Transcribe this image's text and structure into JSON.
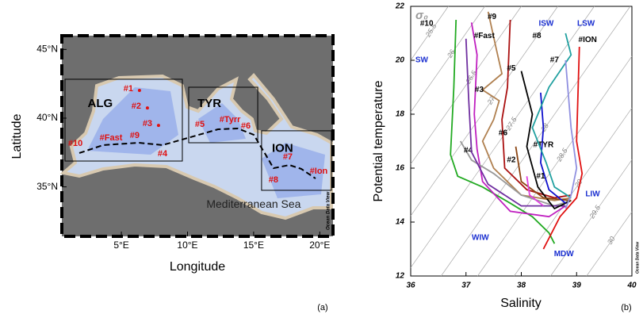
{
  "chart_data": [
    {
      "type": "map",
      "x_label": "Longitude",
      "y_label": "Latitude",
      "xlim": [
        0.5,
        21
      ],
      "ylim": [
        31.4,
        46
      ],
      "xticks": [
        {
          "value": 5,
          "label": "5°E"
        },
        {
          "value": 10,
          "label": "10°E"
        },
        {
          "value": 15,
          "label": "15°E"
        },
        {
          "value": 20,
          "label": "20°E"
        }
      ],
      "yticks": [
        {
          "value": 35,
          "label": "35°N"
        },
        {
          "value": 40,
          "label": "40°N"
        },
        {
          "value": 45,
          "label": "45°N"
        }
      ],
      "regions": [
        {
          "name": "ALG",
          "lon": [
            0.74,
            9.61
          ],
          "lat": [
            36.88,
            42.83
          ]
        },
        {
          "name": "TYR",
          "lon": [
            10.09,
            15.31
          ],
          "lat": [
            38.21,
            42.25
          ]
        },
        {
          "name": "ION",
          "lon": [
            15.6,
            20.88
          ],
          "lat": [
            34.75,
            39.08
          ]
        }
      ],
      "track": {
        "lon": [
          1.82,
          3.62,
          6.31,
          8.11,
          10.21,
          12.31,
          13.81,
          15.01,
          15.91,
          16.5,
          17.7,
          18.6,
          19.68
        ],
        "lat": [
          37.46,
          38.04,
          38.21,
          38.04,
          38.61,
          39.19,
          39.25,
          38.79,
          37.34,
          36.36,
          36.59,
          36.31,
          35.61
        ]
      },
      "stations": [
        {
          "name": "#1",
          "lon": 5.53,
          "lat": 42.13,
          "marker": true
        },
        {
          "name": "#2",
          "lon": 6.13,
          "lat": 40.86,
          "marker": true
        },
        {
          "name": "#3",
          "lon": 6.97,
          "lat": 39.59,
          "marker": true
        },
        {
          "name": "#9",
          "lon": 6.01,
          "lat": 38.73
        },
        {
          "name": "#Fast",
          "lon": 4.22,
          "lat": 38.56
        },
        {
          "name": "#10",
          "lon": 1.52,
          "lat": 38.15
        },
        {
          "name": "#4",
          "lon": 8.11,
          "lat": 37.4
        },
        {
          "name": "#5",
          "lon": 10.93,
          "lat": 39.54
        },
        {
          "name": "#Tyrr",
          "lon": 13.21,
          "lat": 39.88
        },
        {
          "name": "#6",
          "lon": 14.41,
          "lat": 39.42
        },
        {
          "name": "#7",
          "lon": 17.58,
          "lat": 37.17
        },
        {
          "name": "#8",
          "lon": 16.5,
          "lat": 35.5
        },
        {
          "name": "#Ion",
          "lon": 19.92,
          "lat": 36.13
        }
      ],
      "annotation": {
        "text": "Mediterranean Sea",
        "lon": 15.0,
        "lat": 33.7
      },
      "credit": "Ocean Data View",
      "panel_label": "(a)"
    },
    {
      "type": "line",
      "x_label": "Salinity",
      "y_label": "Potential temperature",
      "xlim": [
        36,
        40
      ],
      "ylim": [
        12,
        22
      ],
      "xticks": [
        36,
        37,
        38,
        39,
        40
      ],
      "yticks": [
        12,
        14,
        16,
        18,
        20,
        22
      ],
      "sigma_label": "σ₀",
      "credit": "Ocean Data View",
      "panel_label": "(b)",
      "isopycnals": [
        {
          "value": 25.5,
          "x": [
            36,
            36.68
          ],
          "y": [
            20,
            22
          ]
        },
        {
          "value": 26,
          "x": [
            36,
            37.34
          ],
          "y": [
            18.08,
            22
          ]
        },
        {
          "value": 26.5,
          "x": [
            36,
            38.0
          ],
          "y": [
            16.15,
            22
          ]
        },
        {
          "value": 27,
          "x": [
            36,
            38.66
          ],
          "y": [
            14.23,
            22
          ]
        },
        {
          "value": 27.5,
          "x": [
            36,
            39.32
          ],
          "y": [
            12.31,
            22
          ]
        },
        {
          "value": 28,
          "x": [
            36.55,
            39.97
          ],
          "y": [
            12,
            22
          ]
        },
        {
          "value": 28.5,
          "x": [
            37.21,
            40
          ],
          "y": [
            12,
            20.15
          ]
        },
        {
          "value": 29,
          "x": [
            37.87,
            40
          ],
          "y": [
            12,
            18.23
          ]
        },
        {
          "value": 29.5,
          "x": [
            38.53,
            40
          ],
          "y": [
            12,
            16.31
          ]
        },
        {
          "value": 30,
          "x": [
            39.18,
            40
          ],
          "y": [
            12,
            14.38
          ]
        }
      ],
      "water_masses": [
        {
          "name": "SW",
          "x": 36.2,
          "y": 20.0
        },
        {
          "name": "ISW",
          "x": 38.45,
          "y": 21.35
        },
        {
          "name": "LSW",
          "x": 39.17,
          "y": 21.35
        },
        {
          "name": "LIW",
          "x": 39.29,
          "y": 15.03
        },
        {
          "name": "WIW",
          "x": 37.26,
          "y": 13.41
        },
        {
          "name": "MDW",
          "x": 38.77,
          "y": 12.82
        }
      ],
      "series": [
        {
          "name": "#10",
          "color": "#22aa22",
          "label_at": [
            36.29,
            21.35
          ],
          "x": [
            36.82,
            36.78,
            36.72,
            36.85,
            37.3,
            37.8,
            38.2,
            38.5,
            38.6
          ],
          "values": [
            21.5,
            19,
            16.5,
            15.7,
            15.3,
            14.7,
            14.2,
            13.6,
            13.2
          ]
        },
        {
          "name": "#9",
          "color": "#b08050",
          "label_at": [
            37.47,
            21.6
          ],
          "x": [
            37.4,
            37.55,
            37.65,
            37.3,
            37.6,
            37.5,
            37.3,
            37.5,
            38.0,
            38.6,
            38.9
          ],
          "values": [
            21.8,
            20.4,
            19.5,
            18.9,
            18.5,
            17.8,
            17.0,
            16.0,
            15.0,
            14.8,
            14.9
          ]
        },
        {
          "name": "#Fast",
          "color": "#c020c0",
          "label_at": [
            37.33,
            20.9
          ],
          "x": [
            37.1,
            37.2,
            37.15,
            37.2,
            37.3,
            37.8,
            38.5,
            38.8
          ],
          "values": [
            21.4,
            20.2,
            18,
            16.7,
            15.5,
            14.4,
            14.2,
            14.6
          ]
        },
        {
          "name": "#4",
          "color": "#999999",
          "label_at": [
            37.04,
            16.65
          ],
          "x": [
            36.9,
            37.1,
            37.5,
            38.0,
            38.6,
            38.9
          ],
          "values": [
            17,
            16.3,
            15.8,
            15.0,
            14.6,
            14.8
          ]
        },
        {
          "name": "#3",
          "color": "#7030a0",
          "label_at": [
            37.24,
            18.9
          ],
          "x": [
            37.0,
            37.05,
            37.1,
            37.4,
            38.0,
            38.8
          ],
          "values": [
            20.8,
            18.5,
            16.6,
            15.4,
            14.6,
            14.6
          ]
        },
        {
          "name": "#6",
          "color": "#aa1010",
          "label_at": [
            37.67,
            17.3
          ],
          "x": [
            37.8,
            37.75,
            37.65,
            37.7,
            38.1,
            38.6,
            38.9
          ],
          "values": [
            21.5,
            19.0,
            17.8,
            16.0,
            15.2,
            14.9,
            15.0
          ]
        },
        {
          "name": "#5",
          "color": "#000000",
          "label_at": [
            37.82,
            19.7
          ],
          "x": [
            38.0,
            38.2,
            38.1,
            38.3,
            38.6,
            38.9
          ],
          "values": [
            19.6,
            18.0,
            16.8,
            15.3,
            14.5,
            14.8
          ]
        },
        {
          "name": "#2",
          "color": "#8b4513",
          "label_at": [
            37.82,
            16.3
          ],
          "x": [
            37.9,
            38.0,
            38.4,
            38.9
          ],
          "values": [
            16.8,
            15.5,
            14.9,
            14.8
          ]
        },
        {
          "name": "#TYR",
          "color": "#1010cc",
          "label_at": [
            38.4,
            16.85
          ],
          "x": [
            38.35,
            38.4,
            38.35,
            38.5,
            38.8
          ],
          "values": [
            18.8,
            17.5,
            16.2,
            15.2,
            14.7
          ]
        },
        {
          "name": "#8",
          "color": "#20a0a0",
          "label_at": [
            38.28,
            20.9
          ],
          "x": [
            38.8,
            38.9,
            38.5,
            38.2,
            38.45,
            38.6,
            38.9
          ],
          "values": [
            21.0,
            20.2,
            19.0,
            17.5,
            16.2,
            15.3,
            14.9
          ]
        },
        {
          "name": "#7",
          "color": "#9090e0",
          "label_at": [
            38.6,
            20.0
          ],
          "x": [
            38.8,
            38.9,
            39.0,
            38.9,
            38.8
          ],
          "values": [
            20.0,
            17.5,
            16.0,
            15.0,
            14.5
          ]
        },
        {
          "name": "#ION",
          "color": "#e01010",
          "label_at": [
            39.2,
            20.75
          ],
          "x": [
            39.05,
            39.0,
            39.1,
            39.0,
            38.7,
            38.4
          ],
          "values": [
            20.5,
            17.0,
            15.8,
            14.9,
            14.2,
            13.0
          ]
        },
        {
          "name": "#1",
          "color": "#e040e0",
          "label_at": [
            38.35,
            15.7
          ],
          "x": [
            38.1,
            38.15,
            38.4
          ],
          "values": [
            15.7,
            15.0,
            14.6
          ]
        }
      ]
    }
  ]
}
